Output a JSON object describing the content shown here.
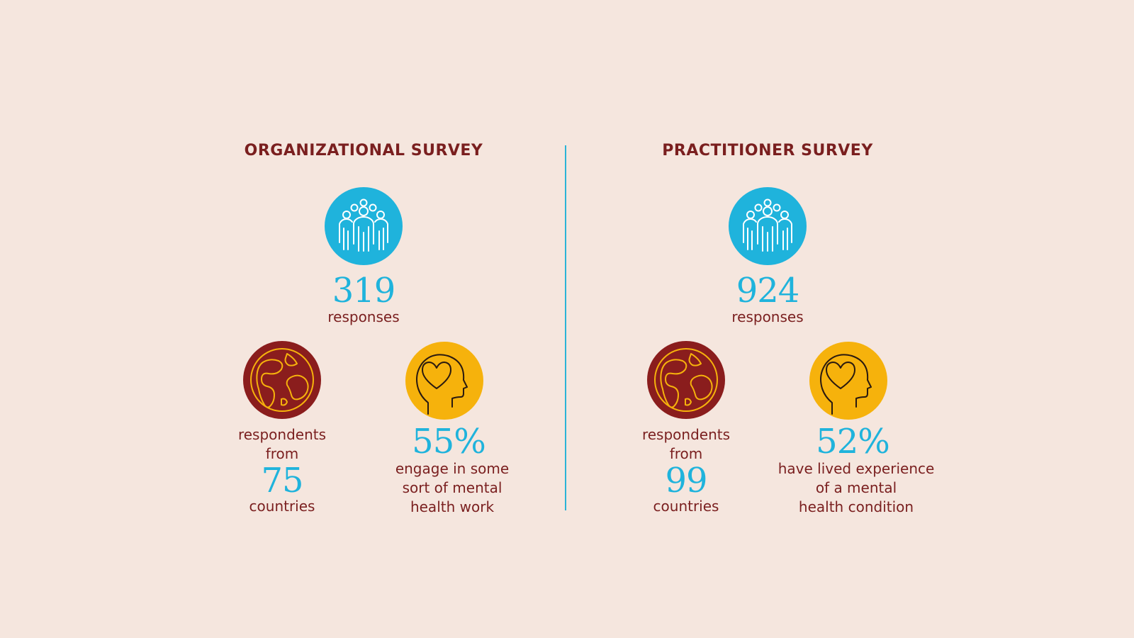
{
  "colors": {
    "background": "#f5e6de",
    "title": "#7a1f1f",
    "accent_blue": "#1fb3dc",
    "accent_red": "#8a1d1d",
    "accent_yellow": "#f6b20c",
    "divider": "#2bb4d6"
  },
  "icons": {
    "responses": "people-group-icon",
    "countries": "globe-icon",
    "mental_health": "head-heart-icon"
  },
  "surveys": [
    {
      "title": "ORGANIZATIONAL SURVEY",
      "responses_number": "319",
      "responses_label": "responses",
      "respondents_from_label": "respondents\nfrom",
      "countries_number": "75",
      "countries_label": "countries",
      "percent": "55%",
      "percent_label": "engage in some\nsort of mental\nhealth work"
    },
    {
      "title": "PRACTITIONER SURVEY",
      "responses_number": "924",
      "responses_label": "responses",
      "respondents_from_label": "respondents\nfrom",
      "countries_number": "99",
      "countries_label": "countries",
      "percent": "52%",
      "percent_label": "have lived experience\nof a mental\nhealth condition"
    }
  ]
}
